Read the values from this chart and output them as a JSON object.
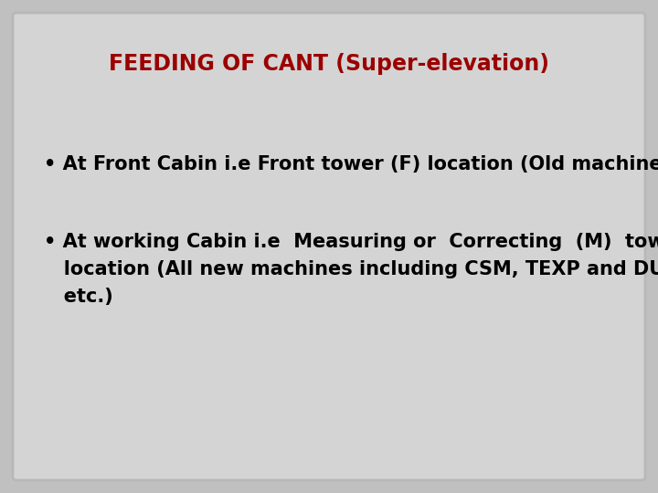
{
  "title": "FEEDING OF CANT (Super-elevation)",
  "title_color": "#9b0000",
  "title_fontsize": 17,
  "bullet1": "• At Front Cabin i.e Front tower (F) location (Old machines).",
  "bullet2_line1": "• At working Cabin i.e  Measuring or  Correcting  (M)  tower",
  "bullet2_line2": "   location (All new machines including CSM, TEXP and DUO",
  "bullet2_line3": "   etc.)",
  "text_color": "#000000",
  "text_fontsize": 15,
  "bg_color": "#d4d4d4",
  "border_color": "#b8b8b8",
  "outer_bg": "#c0c0c0"
}
